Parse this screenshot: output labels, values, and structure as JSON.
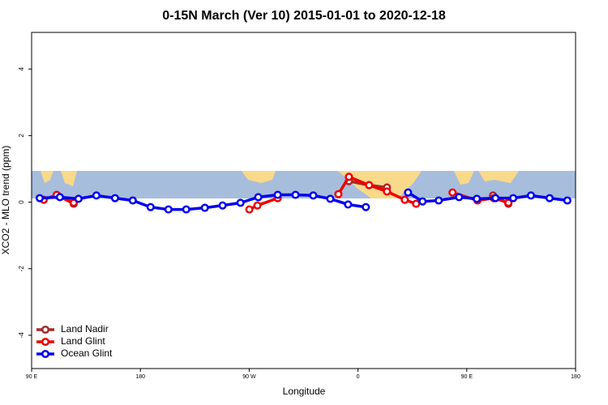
{
  "chart_data": {
    "type": "line",
    "title": "0-15N March (Ver 10)   2015-01-01 to 2020-12-18",
    "xlabel": "Longitude",
    "ylabel": "XCO2 - MLO trend (ppm)",
    "xlim": [
      90,
      540
    ],
    "ylim": [
      -5,
      5.1
    ],
    "xticks": [
      {
        "value": 90,
        "label": "90 E"
      },
      {
        "value": 180,
        "label": "180"
      },
      {
        "value": 270,
        "label": "90 W"
      },
      {
        "value": 360,
        "label": "0"
      },
      {
        "value": 450,
        "label": "90 E"
      },
      {
        "value": 540,
        "label": "180"
      }
    ],
    "yticks": [
      -4,
      -2,
      0,
      2,
      4
    ],
    "legend": "bottom-left",
    "series": [
      {
        "name": "Land Nadir",
        "color": "#a52a2a",
        "x": [
          111.4,
          124.8,
          null,
          352.5,
          369.2,
          384,
          null,
          471.7,
          484.4
        ],
        "values": [
          0.2,
          -0.05,
          null,
          0.63,
          0.51,
          0.44,
          null,
          0.2,
          -0.05
        ]
      },
      {
        "name": "Land Glint",
        "color": "#ee0000",
        "x": [
          100,
          110.7,
          124.8,
          null,
          270.1,
          276.8,
          293.6,
          null,
          343.8,
          352.5,
          369.2,
          384,
          398.7,
          408.1,
          null,
          438.2,
          458.9,
          472.3,
          484.4
        ],
        "values": [
          0.07,
          0.22,
          -0.02,
          null,
          -0.22,
          -0.1,
          0.12,
          null,
          0.24,
          0.76,
          0.51,
          0.32,
          0.07,
          -0.05,
          null,
          0.29,
          0.05,
          0.12,
          -0.02
        ]
      },
      {
        "name": "Ocean Glint",
        "color": "#0000ee",
        "x": [
          96.7,
          113.4,
          128.8,
          143.6,
          159,
          173.7,
          188.4,
          203.2,
          217.9,
          233.3,
          248,
          262.8,
          277.5,
          293.6,
          308.3,
          323,
          337.1,
          351.8,
          366.5,
          null,
          401.4,
          413.4,
          426.8,
          443.6,
          458.3,
          473.7,
          488.4,
          503.1,
          518.5,
          533.2
        ],
        "values": [
          0.12,
          0.15,
          0.1,
          0.2,
          0.12,
          0.05,
          -0.15,
          -0.22,
          -0.22,
          -0.17,
          -0.1,
          -0.02,
          0.15,
          0.22,
          0.22,
          0.2,
          0.1,
          -0.07,
          -0.15,
          null,
          0.29,
          0.02,
          0.05,
          0.15,
          0.1,
          0.12,
          0.12,
          0.2,
          0.12,
          0.05
        ]
      }
    ]
  }
}
